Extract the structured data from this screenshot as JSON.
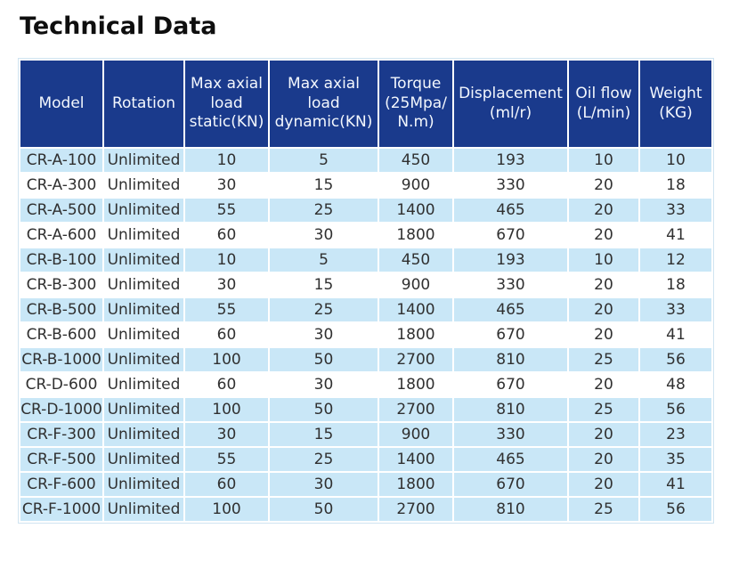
{
  "page": {
    "title": "Technical Data"
  },
  "colors": {
    "header_bg": "#1a3a8c",
    "header_text": "#f3f7fd",
    "row_shaded": "#c9e7f7",
    "body_text": "#303030"
  },
  "table": {
    "columns": [
      {
        "key": "model",
        "label": "Model"
      },
      {
        "key": "rotation",
        "label": "Rotation"
      },
      {
        "key": "static_load",
        "label": "Max axial\nload\nstatic(KN)"
      },
      {
        "key": "dynamic_load",
        "label": "Max axial\nload\ndynamic(KN)"
      },
      {
        "key": "torque",
        "label": "Torque\n(25Mpa/\nN.m)"
      },
      {
        "key": "displacement",
        "label": "Displacement\n(ml/r)"
      },
      {
        "key": "oil_flow",
        "label": "Oil flow\n(L/min)"
      },
      {
        "key": "weight",
        "label": "Weight\n(KG)"
      }
    ],
    "rows": [
      {
        "model": "CR-A-100",
        "rotation": "Unlimited",
        "static_load": "10",
        "dynamic_load": "5",
        "torque": "450",
        "displacement": "193",
        "oil_flow": "10",
        "weight": "10",
        "shaded": true
      },
      {
        "model": "CR-A-300",
        "rotation": "Unlimited",
        "static_load": "30",
        "dynamic_load": "15",
        "torque": "900",
        "displacement": "330",
        "oil_flow": "20",
        "weight": "18",
        "shaded": false
      },
      {
        "model": "CR-A-500",
        "rotation": "Unlimited",
        "static_load": "55",
        "dynamic_load": "25",
        "torque": "1400",
        "displacement": "465",
        "oil_flow": "20",
        "weight": "33",
        "shaded": true
      },
      {
        "model": "CR-A-600",
        "rotation": "Unlimited",
        "static_load": "60",
        "dynamic_load": "30",
        "torque": "1800",
        "displacement": "670",
        "oil_flow": "20",
        "weight": "41",
        "shaded": false
      },
      {
        "model": "CR-B-100",
        "rotation": "Unlimited",
        "static_load": "10",
        "dynamic_load": "5",
        "torque": "450",
        "displacement": "193",
        "oil_flow": "10",
        "weight": "12",
        "shaded": true
      },
      {
        "model": "CR-B-300",
        "rotation": "Unlimited",
        "static_load": "30",
        "dynamic_load": "15",
        "torque": "900",
        "displacement": "330",
        "oil_flow": "20",
        "weight": "18",
        "shaded": false
      },
      {
        "model": "CR-B-500",
        "rotation": "Unlimited",
        "static_load": "55",
        "dynamic_load": "25",
        "torque": "1400",
        "displacement": "465",
        "oil_flow": "20",
        "weight": "33",
        "shaded": true
      },
      {
        "model": "CR-B-600",
        "rotation": "Unlimited",
        "static_load": "60",
        "dynamic_load": "30",
        "torque": "1800",
        "displacement": "670",
        "oil_flow": "20",
        "weight": "41",
        "shaded": false
      },
      {
        "model": "CR-B-1000",
        "rotation": "Unlimited",
        "static_load": "100",
        "dynamic_load": "50",
        "torque": "2700",
        "displacement": "810",
        "oil_flow": "25",
        "weight": "56",
        "shaded": true
      },
      {
        "model": "CR-D-600",
        "rotation": "Unlimited",
        "static_load": "60",
        "dynamic_load": "30",
        "torque": "1800",
        "displacement": "670",
        "oil_flow": "20",
        "weight": "48",
        "shaded": false
      },
      {
        "model": "CR-D-1000",
        "rotation": "Unlimited",
        "static_load": "100",
        "dynamic_load": "50",
        "torque": "2700",
        "displacement": "810",
        "oil_flow": "25",
        "weight": "56",
        "shaded": true
      },
      {
        "model": "CR-F-300",
        "rotation": "Unlimited",
        "static_load": "30",
        "dynamic_load": "15",
        "torque": "900",
        "displacement": "330",
        "oil_flow": "20",
        "weight": "23",
        "shaded": true
      },
      {
        "model": "CR-F-500",
        "rotation": "Unlimited",
        "static_load": "55",
        "dynamic_load": "25",
        "torque": "1400",
        "displacement": "465",
        "oil_flow": "20",
        "weight": "35",
        "shaded": true
      },
      {
        "model": "CR-F-600",
        "rotation": "Unlimited",
        "static_load": "60",
        "dynamic_load": "30",
        "torque": "1800",
        "displacement": "670",
        "oil_flow": "20",
        "weight": "41",
        "shaded": true
      },
      {
        "model": "CR-F-1000",
        "rotation": "Unlimited",
        "static_load": "100",
        "dynamic_load": "50",
        "torque": "2700",
        "displacement": "810",
        "oil_flow": "25",
        "weight": "56",
        "shaded": true
      }
    ]
  }
}
